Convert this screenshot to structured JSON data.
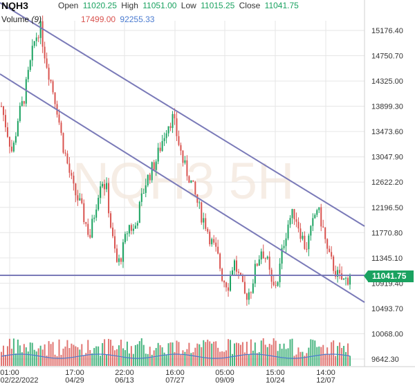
{
  "header": {
    "symbol": "NQH3",
    "open_label": "Open",
    "open_value": "11020.25",
    "high_label": "High",
    "high_value": "11051.00",
    "low_label": "Low",
    "low_value": "11015.25",
    "close_label": "Close",
    "close_value": "11041.75"
  },
  "volume": {
    "label": "Volume",
    "period": "(9)",
    "value_red": "17499.00",
    "value_blue": "92255.33"
  },
  "watermark": "NQH3 5H",
  "last_price": "11041.75",
  "colors": {
    "up": "#1aa260",
    "down": "#d9534f",
    "trendline": "#7a7ab8",
    "volume_avg": "#4a7bd0",
    "grid": "#e6e6e6"
  },
  "chart_data": {
    "type": "candlestick",
    "y_axis_ticks": [
      "15176.40",
      "14750.70",
      "14325.00",
      "13899.30",
      "13473.60",
      "13047.90",
      "12622.20",
      "12196.50",
      "11770.80",
      "11345.10",
      "10919.40",
      "10493.70",
      "10068.00",
      "9642.30"
    ],
    "ylim": [
      9642.3,
      15176.4
    ],
    "x_axis_ticks": [
      {
        "time": "01:00",
        "date": "02/22/2022"
      },
      {
        "time": "17:00",
        "date": "04/29"
      },
      {
        "time": "22:00",
        "date": "06/13"
      },
      {
        "time": "16:00",
        "date": "07/27"
      },
      {
        "time": "05:00",
        "date": "09/09"
      },
      {
        "time": "15:00",
        "date": "10/24"
      },
      {
        "time": "14:00",
        "date": "12/07"
      }
    ],
    "price_path": [
      13900,
      13500,
      13100,
      13700,
      14000,
      14500,
      15000,
      15250,
      14700,
      14300,
      13900,
      13300,
      12900,
      12500,
      12300,
      12000,
      11700,
      12200,
      12700,
      12500,
      11700,
      11200,
      11500,
      11900,
      11800,
      12200,
      12600,
      12800,
      13000,
      13300,
      13600,
      13700,
      13300,
      12900,
      12700,
      12400,
      12100,
      11900,
      11600,
      11400,
      11000,
      10900,
      11300,
      11000,
      10700,
      10800,
      11200,
      11500,
      11300,
      10800,
      11000,
      11600,
      12000,
      12100,
      11800,
      11500,
      11800,
      12200,
      11900,
      11400,
      11200,
      11000,
      10950,
      11041.75
    ],
    "series": [
      {
        "name": "Volume",
        "kind": "bar"
      }
    ]
  }
}
